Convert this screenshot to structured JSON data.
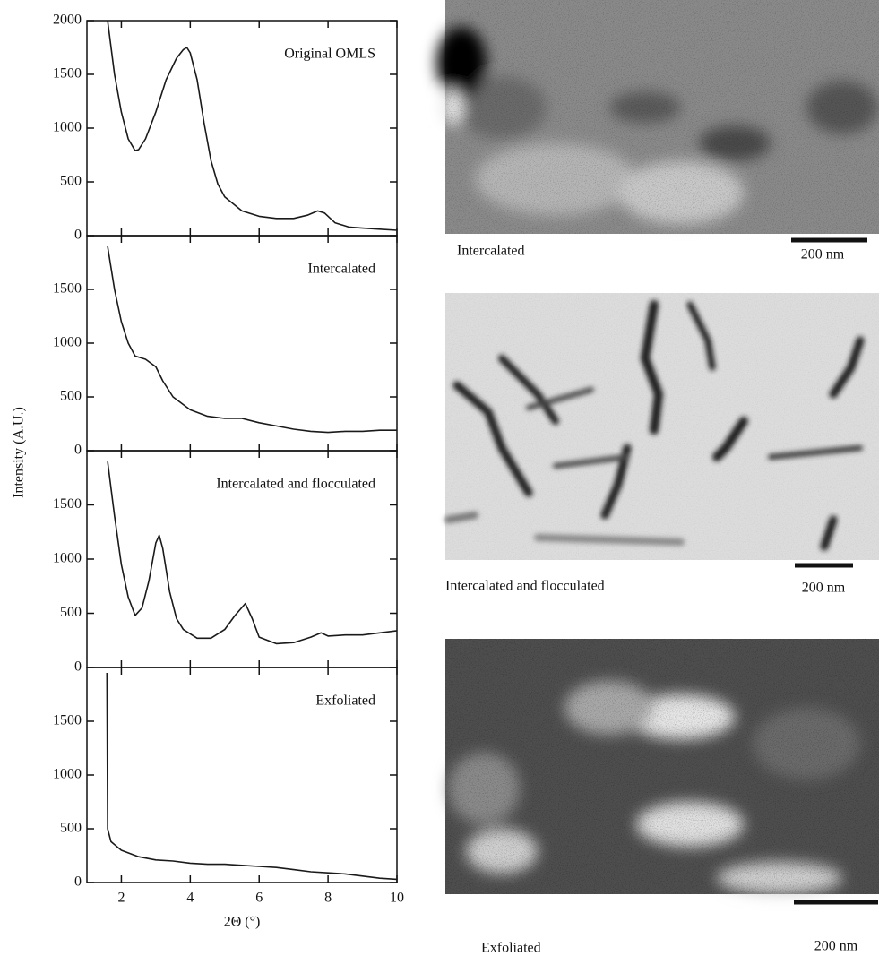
{
  "figure": {
    "ylabel": "Intensity (A.U.)",
    "xlabel": "2Θ (°)"
  },
  "chart_data": [
    {
      "type": "line",
      "title": "Original OMLS",
      "color": "#1a1a1a",
      "xlim": [
        1,
        10
      ],
      "xticks": [
        2,
        4,
        6,
        8,
        10
      ],
      "ylim": [
        0,
        2000
      ],
      "yticks": [
        0,
        500,
        1000,
        1500,
        2000
      ],
      "x": [
        1.6,
        1.8,
        2.0,
        2.2,
        2.4,
        2.5,
        2.7,
        3.0,
        3.3,
        3.6,
        3.8,
        3.9,
        4.0,
        4.2,
        4.4,
        4.6,
        4.8,
        5.0,
        5.5,
        6.0,
        6.5,
        7.0,
        7.4,
        7.7,
        7.9,
        8.2,
        8.6,
        9.0,
        9.5,
        10
      ],
      "values": [
        2000,
        1500,
        1150,
        900,
        790,
        800,
        900,
        1150,
        1450,
        1650,
        1730,
        1750,
        1700,
        1450,
        1050,
        700,
        480,
        360,
        230,
        180,
        160,
        160,
        190,
        230,
        210,
        120,
        80,
        70,
        60,
        50
      ]
    },
    {
      "type": "line",
      "title": "Intercalated",
      "color": "#1a1a1a",
      "xlim": [
        1,
        10
      ],
      "xticks": [
        2,
        4,
        6,
        8,
        10
      ],
      "ylim": [
        0,
        2000
      ],
      "yticks": [
        0,
        500,
        1000,
        1500
      ],
      "x": [
        1.6,
        1.8,
        2.0,
        2.2,
        2.4,
        2.7,
        3.0,
        3.2,
        3.5,
        4.0,
        4.5,
        5.0,
        5.5,
        6.0,
        6.5,
        7.0,
        7.5,
        8.0,
        8.5,
        9.0,
        9.5,
        10
      ],
      "values": [
        1900,
        1500,
        1200,
        1000,
        880,
        850,
        780,
        650,
        500,
        380,
        320,
        300,
        300,
        260,
        230,
        200,
        180,
        170,
        180,
        180,
        190,
        190
      ]
    },
    {
      "type": "line",
      "title": "Intercalated and flocculated",
      "color": "#1a1a1a",
      "xlim": [
        1,
        10
      ],
      "xticks": [
        2,
        4,
        6,
        8,
        10
      ],
      "ylim": [
        0,
        2000
      ],
      "yticks": [
        0,
        500,
        1000,
        1500
      ],
      "x": [
        1.6,
        1.8,
        2.0,
        2.2,
        2.4,
        2.6,
        2.8,
        3.0,
        3.1,
        3.2,
        3.4,
        3.6,
        3.8,
        4.2,
        4.6,
        5.0,
        5.3,
        5.6,
        5.8,
        6.0,
        6.5,
        7.0,
        7.5,
        7.8,
        8.0,
        8.5,
        9.0,
        9.5,
        10
      ],
      "values": [
        1900,
        1400,
        950,
        650,
        480,
        550,
        800,
        1150,
        1220,
        1100,
        700,
        450,
        350,
        270,
        270,
        350,
        480,
        590,
        450,
        280,
        220,
        230,
        280,
        320,
        290,
        300,
        300,
        320,
        340
      ]
    },
    {
      "type": "line",
      "title": "Exfoliated",
      "color": "#1a1a1a",
      "xlim": [
        1,
        10
      ],
      "xticks": [
        2,
        4,
        6,
        8,
        10
      ],
      "ylim": [
        0,
        2000
      ],
      "yticks": [
        0,
        500,
        1000,
        1500
      ],
      "x": [
        1.58,
        1.6,
        1.7,
        2.0,
        2.5,
        3.0,
        3.5,
        4.0,
        4.5,
        5.0,
        5.5,
        6.0,
        6.5,
        7.0,
        7.5,
        8.0,
        8.5,
        9.0,
        9.5,
        10
      ],
      "values": [
        1950,
        500,
        380,
        300,
        240,
        210,
        200,
        180,
        170,
        170,
        160,
        150,
        140,
        120,
        100,
        90,
        80,
        60,
        40,
        30
      ]
    }
  ],
  "images": [
    {
      "caption": "Intercalated",
      "scale_bar": "200 nm"
    },
    {
      "caption": "Intercalated and flocculated",
      "scale_bar": "200 nm"
    },
    {
      "caption": "Exfoliated",
      "scale_bar": "200 nm"
    }
  ]
}
